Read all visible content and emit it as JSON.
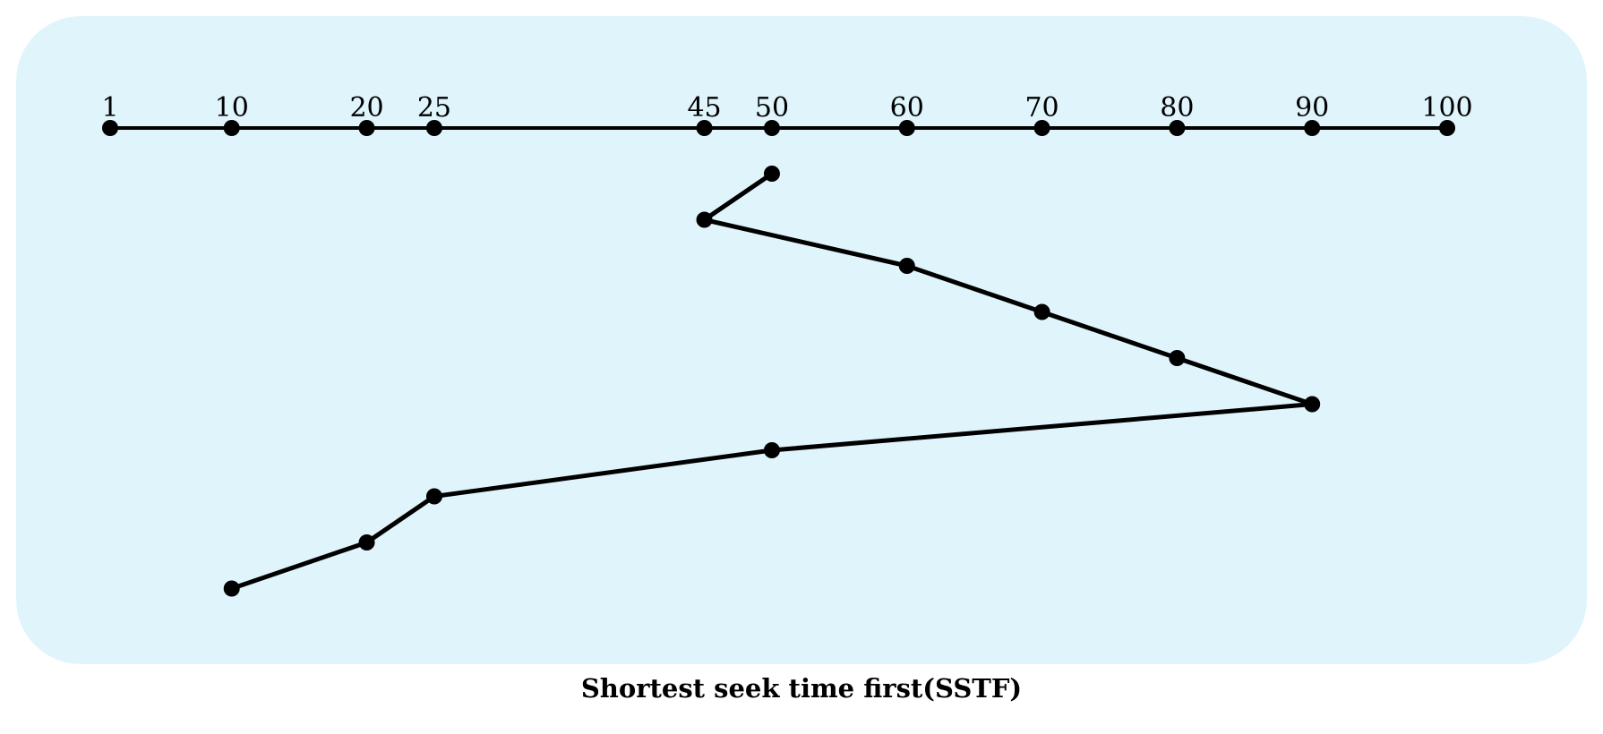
{
  "caption": "Shortest seek time first(SSTF)",
  "colors": {
    "panel": "#e0f4fc",
    "ink": "#000000"
  },
  "diagram": {
    "track_axis": {
      "min": 1,
      "max": 100,
      "ticks": [
        1,
        10,
        20,
        25,
        45,
        50,
        60,
        70,
        80,
        90,
        100
      ]
    },
    "head_path": [
      50,
      45,
      60,
      70,
      80,
      90,
      50,
      25,
      20,
      10
    ]
  }
}
